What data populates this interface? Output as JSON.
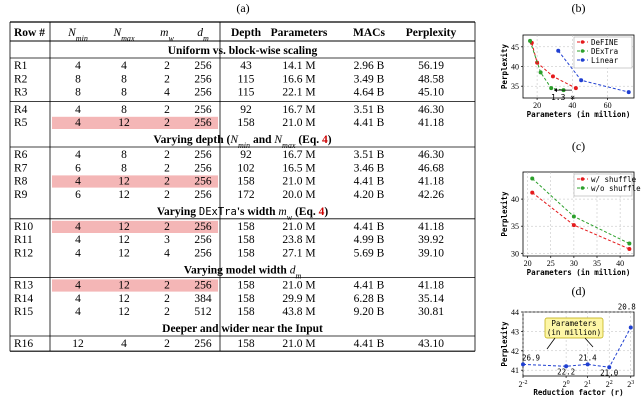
{
  "panel_labels": {
    "a": "(a)",
    "b": "(b)",
    "c": "(c)",
    "d": "(d)"
  },
  "table": {
    "headers": [
      "Row #",
      "N_min",
      "N_max",
      "m_w",
      "d_m",
      "Depth",
      "Parameters",
      "MACs",
      "Perplexity"
    ],
    "sections": [
      {
        "title": "Uniform vs. block-wise scaling",
        "groups": [
          [
            [
              "R1",
              "4",
              "4",
              "2",
              "256",
              "43",
              "14.1 M",
              "2.96 B",
              "56.19"
            ],
            [
              "R2",
              "8",
              "8",
              "2",
              "256",
              "115",
              "16.6 M",
              "3.49 B",
              "48.58"
            ],
            [
              "R3",
              "8",
              "8",
              "4",
              "256",
              "115",
              "22.1 M",
              "4.64 B",
              "45.10"
            ]
          ],
          [
            [
              "R4",
              "4",
              "8",
              "2",
              "256",
              "92",
              "16.7 M",
              "3.51 B",
              "46.30"
            ],
            [
              "R5",
              "4",
              "12",
              "2",
              "256",
              "158",
              "21.0 M",
              "4.41 B",
              "41.18"
            ]
          ]
        ]
      },
      {
        "title": "Varying depth (N_min and N_max (Eq. 4)",
        "groups": [
          [
            [
              "R6",
              "4",
              "8",
              "2",
              "256",
              "92",
              "16.7 M",
              "3.51 B",
              "46.30"
            ],
            [
              "R7",
              "6",
              "8",
              "2",
              "256",
              "102",
              "16.5 M",
              "3.46 B",
              "46.68"
            ],
            [
              "R8",
              "4",
              "12",
              "2",
              "256",
              "158",
              "21.0 M",
              "4.41 B",
              "41.18"
            ],
            [
              "R9",
              "6",
              "12",
              "2",
              "256",
              "172",
              "20.0 M",
              "4.20 B",
              "42.26"
            ]
          ]
        ]
      },
      {
        "title": "Varying DExTra's width m_w (Eq. 4)",
        "groups": [
          [
            [
              "R10",
              "4",
              "12",
              "2",
              "256",
              "158",
              "21.0 M",
              "4.41 B",
              "41.18"
            ],
            [
              "R11",
              "4",
              "12",
              "3",
              "256",
              "158",
              "23.8 M",
              "4.99 B",
              "39.92"
            ],
            [
              "R12",
              "4",
              "12",
              "4",
              "256",
              "158",
              "27.1 M",
              "5.69 B",
              "39.10"
            ]
          ]
        ]
      },
      {
        "title": "Varying model width d_m",
        "groups": [
          [
            [
              "R13",
              "4",
              "12",
              "2",
              "256",
              "158",
              "21.0 M",
              "4.41 B",
              "41.18"
            ],
            [
              "R14",
              "4",
              "12",
              "2",
              "384",
              "158",
              "29.9 M",
              "6.28 B",
              "35.14"
            ],
            [
              "R15",
              "4",
              "12",
              "2",
              "512",
              "158",
              "43.8 M",
              "9.20 B",
              "30.81"
            ]
          ]
        ]
      },
      {
        "title": "Deeper and wider near the Input",
        "groups": [
          [
            [
              "R16",
              "12",
              "4",
              "2",
              "256",
              "158",
              "21.0 M",
              "4.41 B",
              "43.10"
            ]
          ]
        ]
      }
    ],
    "highlight_rows": [
      "R5",
      "R8",
      "R10",
      "R13"
    ],
    "highlight_color": "#f4b6b6"
  },
  "chart_data": [
    {
      "panel": "b",
      "type": "line",
      "xlabel": "Parameters (in million)",
      "ylabel": "Perplexity",
      "xlim": [
        12,
        75
      ],
      "ylim": [
        32,
        48
      ],
      "xticks": [
        20,
        40,
        60
      ],
      "yticks": [
        35,
        40,
        45
      ],
      "legend": "top-right",
      "grid": true,
      "annotation": "1.3 ×",
      "series": [
        {
          "name": "DeFINE",
          "color": "#e41a1c",
          "x": [
            17,
            20,
            29,
            42
          ],
          "y": [
            46,
            41,
            37.5,
            34.5
          ]
        },
        {
          "name": "DExTra",
          "color": "#2ca02c",
          "x": [
            16,
            22,
            28,
            35
          ],
          "y": [
            46.5,
            38.5,
            34.5,
            34
          ]
        },
        {
          "name": "Linear",
          "color": "#1f3fd1",
          "x": [
            32,
            45,
            72
          ],
          "y": [
            44,
            36.5,
            33.5
          ]
        }
      ]
    },
    {
      "panel": "c",
      "type": "line",
      "xlabel": "Parameters (in million)",
      "ylabel": "Perplexity",
      "xlim": [
        19,
        43
      ],
      "ylim": [
        29.5,
        45
      ],
      "xticks": [
        20,
        25,
        30,
        35,
        40
      ],
      "yticks": [
        30,
        35,
        40
      ],
      "legend": "top-right",
      "grid": true,
      "series": [
        {
          "name": "w/ shuffle",
          "color": "#e41a1c",
          "x": [
            21,
            30,
            42
          ],
          "y": [
            41.2,
            35.2,
            30.8
          ]
        },
        {
          "name": "w/o shuffle",
          "color": "#2ca02c",
          "x": [
            21,
            30,
            42
          ],
          "y": [
            43.8,
            36.8,
            31.8
          ]
        }
      ]
    },
    {
      "panel": "d",
      "type": "line",
      "xlabel": "Reduction factor (r)",
      "ylabel": "Perplexity",
      "x_tick_labels": [
        "2^-2",
        "2^0",
        "2^1",
        "2^2",
        "2^3"
      ],
      "xlim": [
        -2,
        3.15
      ],
      "ylim": [
        40.7,
        44
      ],
      "yticks": [
        41,
        42,
        43,
        44
      ],
      "grid": true,
      "annotation_box": "Parameters (in million)",
      "series": [
        {
          "color": "#1f3fd1",
          "x": [
            -2,
            0,
            1,
            2,
            3
          ],
          "y": [
            41.3,
            41.2,
            41.3,
            41.15,
            43.2
          ],
          "point_labels": [
            "26.9",
            "22.2",
            "21.4",
            "21.0",
            "20.8"
          ]
        }
      ]
    }
  ]
}
